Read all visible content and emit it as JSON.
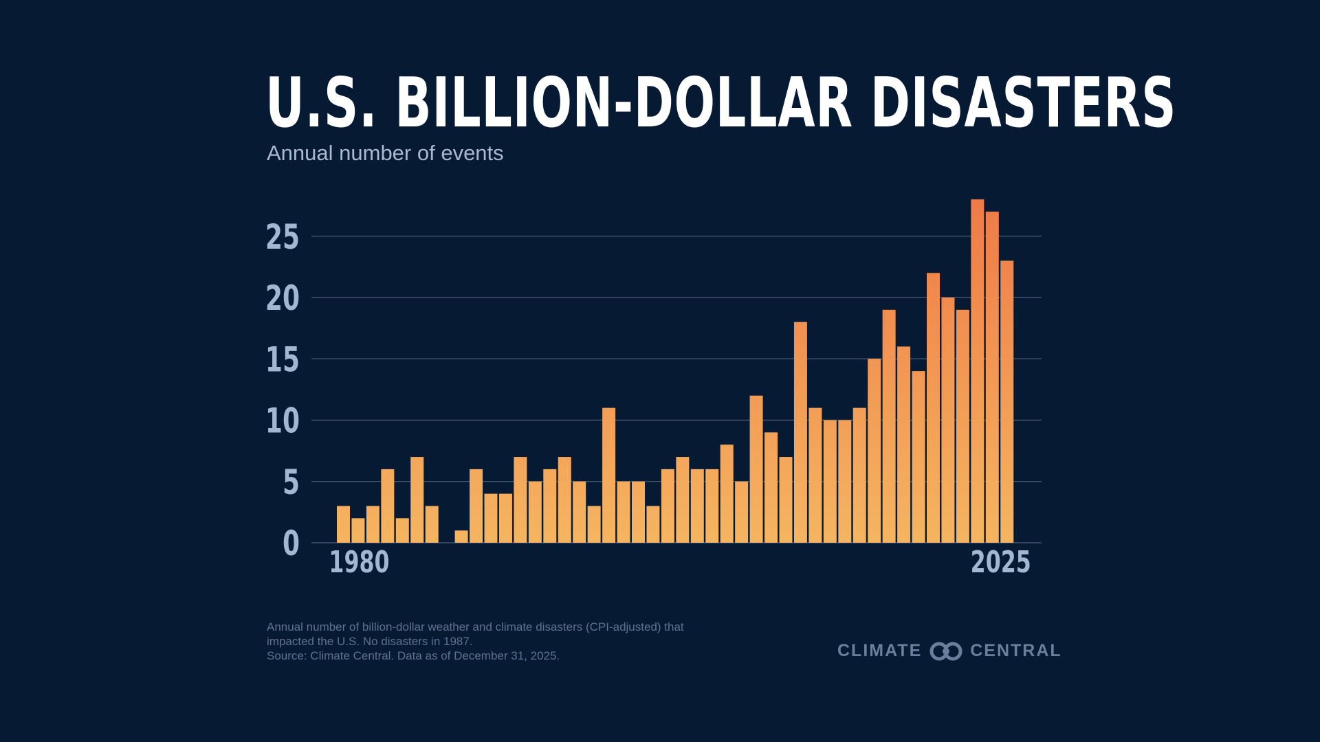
{
  "chart_data": {
    "type": "bar",
    "title": "U.S. BILLION-DOLLAR DISASTERS",
    "subtitle": "Annual number of events",
    "xlabel": "",
    "ylabel": "",
    "x": [
      1980,
      1981,
      1982,
      1983,
      1984,
      1985,
      1986,
      1987,
      1988,
      1989,
      1990,
      1991,
      1992,
      1993,
      1994,
      1995,
      1996,
      1997,
      1998,
      1999,
      2000,
      2001,
      2002,
      2003,
      2004,
      2005,
      2006,
      2007,
      2008,
      2009,
      2010,
      2011,
      2012,
      2013,
      2014,
      2015,
      2016,
      2017,
      2018,
      2019,
      2020,
      2021,
      2022,
      2023,
      2024,
      2025
    ],
    "values": [
      3,
      2,
      3,
      6,
      2,
      7,
      3,
      0,
      1,
      6,
      4,
      4,
      7,
      5,
      6,
      7,
      5,
      3,
      11,
      5,
      5,
      3,
      6,
      7,
      6,
      6,
      8,
      5,
      12,
      9,
      7,
      18,
      11,
      10,
      10,
      11,
      15,
      19,
      16,
      14,
      22,
      20,
      19,
      28,
      27,
      23
    ],
    "ylim": [
      0,
      28
    ],
    "yticks": [
      "0",
      "5",
      "10",
      "15",
      "20",
      "25"
    ],
    "xtick_labels": [
      "1980",
      "2025"
    ],
    "grid": true,
    "colors": {
      "bar_top": "#ef7a47",
      "bar_bottom": "#f5b560",
      "background": "#071a33",
      "grid": "#4b5e7a",
      "tick": "#a3b6d2"
    }
  },
  "footer": {
    "notes": [
      "Annual number of billion-dollar weather and climate disasters (CPI-adjusted) that",
      "impacted the U.S. No disasters in 1987.",
      "Source: Climate Central. Data as of December 31, 2025."
    ],
    "logo_left": "CLIMATE",
    "logo_right": "CENTRAL"
  }
}
